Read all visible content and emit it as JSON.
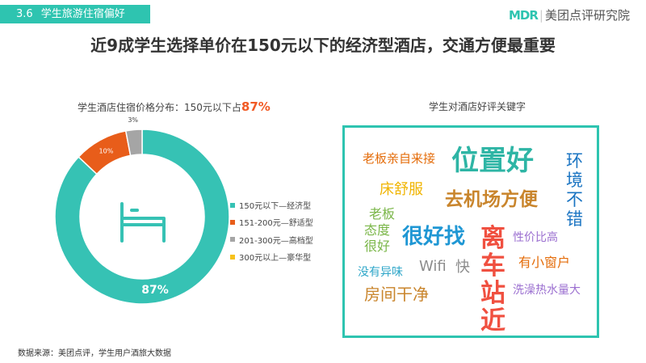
{
  "header": {
    "section_number": "3.6",
    "section_title": "学生旅游住宿偏好",
    "brand_logo": "MDR",
    "brand_name": "美团点评研究院",
    "headline": "近9成学生选择单价在150元以下的经济型酒店，交通方便最重要"
  },
  "price_chart": {
    "title_prefix": "学生酒店住宿价格分布：150元以下占",
    "title_highlight": "87%"
  },
  "chart_data": {
    "type": "pie",
    "donut": true,
    "center_icon": "bed-icon",
    "categories": [
      "150元以下—经济型",
      "151-200元—舒适型",
      "201-300元—高档型",
      "300元以上—豪华型"
    ],
    "values": [
      87,
      10,
      3,
      0
    ],
    "labels": [
      "87%",
      "10%",
      "3%",
      ""
    ],
    "colors": [
      "#36c2b4",
      "#e85d1a",
      "#a5a5a5",
      "#f7c21d"
    ],
    "legend_position": "right"
  },
  "word_cloud": {
    "title": "学生对酒店好评关键字",
    "words": [
      {
        "text": "老板亲自来接",
        "color": "#e46c0a"
      },
      {
        "text": "位置好",
        "color": "#2eb5a5"
      },
      {
        "text": "环",
        "color": "#1a74c2"
      },
      {
        "text": "境",
        "color": "#1a74c2"
      },
      {
        "text": "不",
        "color": "#1a74c2"
      },
      {
        "text": "错",
        "color": "#1a74c2"
      },
      {
        "text": "床舒服",
        "color": "#f0b400"
      },
      {
        "text": "去机场方便",
        "color": "#c9852c"
      },
      {
        "text": "老板",
        "color": "#7ab648"
      },
      {
        "text": "态度",
        "color": "#7ab648"
      },
      {
        "text": "很好",
        "color": "#7ab648"
      },
      {
        "text": "很好找",
        "color": "#1f97d4"
      },
      {
        "text": "离",
        "color": "#f05040"
      },
      {
        "text": "车",
        "color": "#f05040"
      },
      {
        "text": "站",
        "color": "#f05040"
      },
      {
        "text": "近",
        "color": "#f05040"
      },
      {
        "text": "性价比高",
        "color": "#9b6fd0"
      },
      {
        "text": "没有异味",
        "color": "#2ea6c8"
      },
      {
        "text": "Wifi",
        "color": "#8c8c8c"
      },
      {
        "text": "快",
        "color": "#8c8c8c"
      },
      {
        "text": "有小窗户",
        "color": "#e46c0a"
      },
      {
        "text": "房间干净",
        "color": "#c9852c"
      },
      {
        "text": "洗澡热水量大",
        "color": "#9b6fd0"
      }
    ]
  },
  "footer": {
    "source": "数据来源：美团点评，学生用户酒旅大数据"
  }
}
